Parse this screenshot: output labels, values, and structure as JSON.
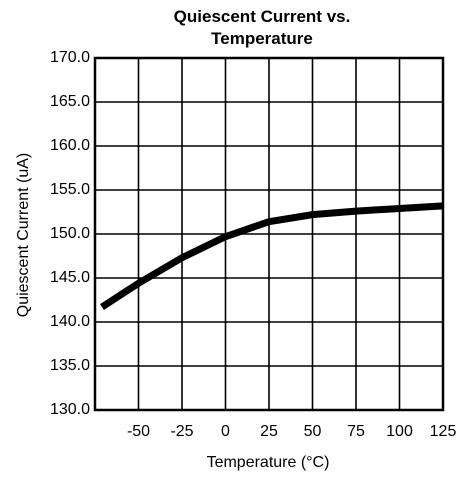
{
  "chart_data": {
    "type": "line",
    "title": "Quiescent Current vs. Temperature",
    "x_label": "Temperature (°C)",
    "y_label": "Quiescent Current (uA)",
    "x": [
      -71,
      -50,
      -25,
      0,
      25,
      50,
      75,
      100,
      125
    ],
    "series": [
      {
        "name": "Quiescent Current",
        "color": "#000000",
        "values": [
          141.7,
          144.4,
          147.3,
          149.7,
          151.4,
          152.2,
          152.6,
          152.9,
          153.2
        ]
      }
    ],
    "xlim": [
      -75,
      125
    ],
    "xticks": [
      -50,
      -25,
      0,
      25,
      50,
      75,
      100,
      125
    ],
    "ylim": [
      130,
      170
    ],
    "yticks": [
      {
        "value": 130,
        "label": "130.0"
      },
      {
        "value": 135,
        "label": "135.0"
      },
      {
        "value": 140,
        "label": "140.0"
      },
      {
        "value": 145,
        "label": "145.0"
      },
      {
        "value": 150,
        "label": "150.0"
      },
      {
        "value": 155,
        "label": "155.0"
      },
      {
        "value": 160,
        "label": "160.0"
      },
      {
        "value": 165,
        "label": "165.0"
      },
      {
        "value": 170,
        "label": "170.0"
      }
    ],
    "grid": true
  }
}
